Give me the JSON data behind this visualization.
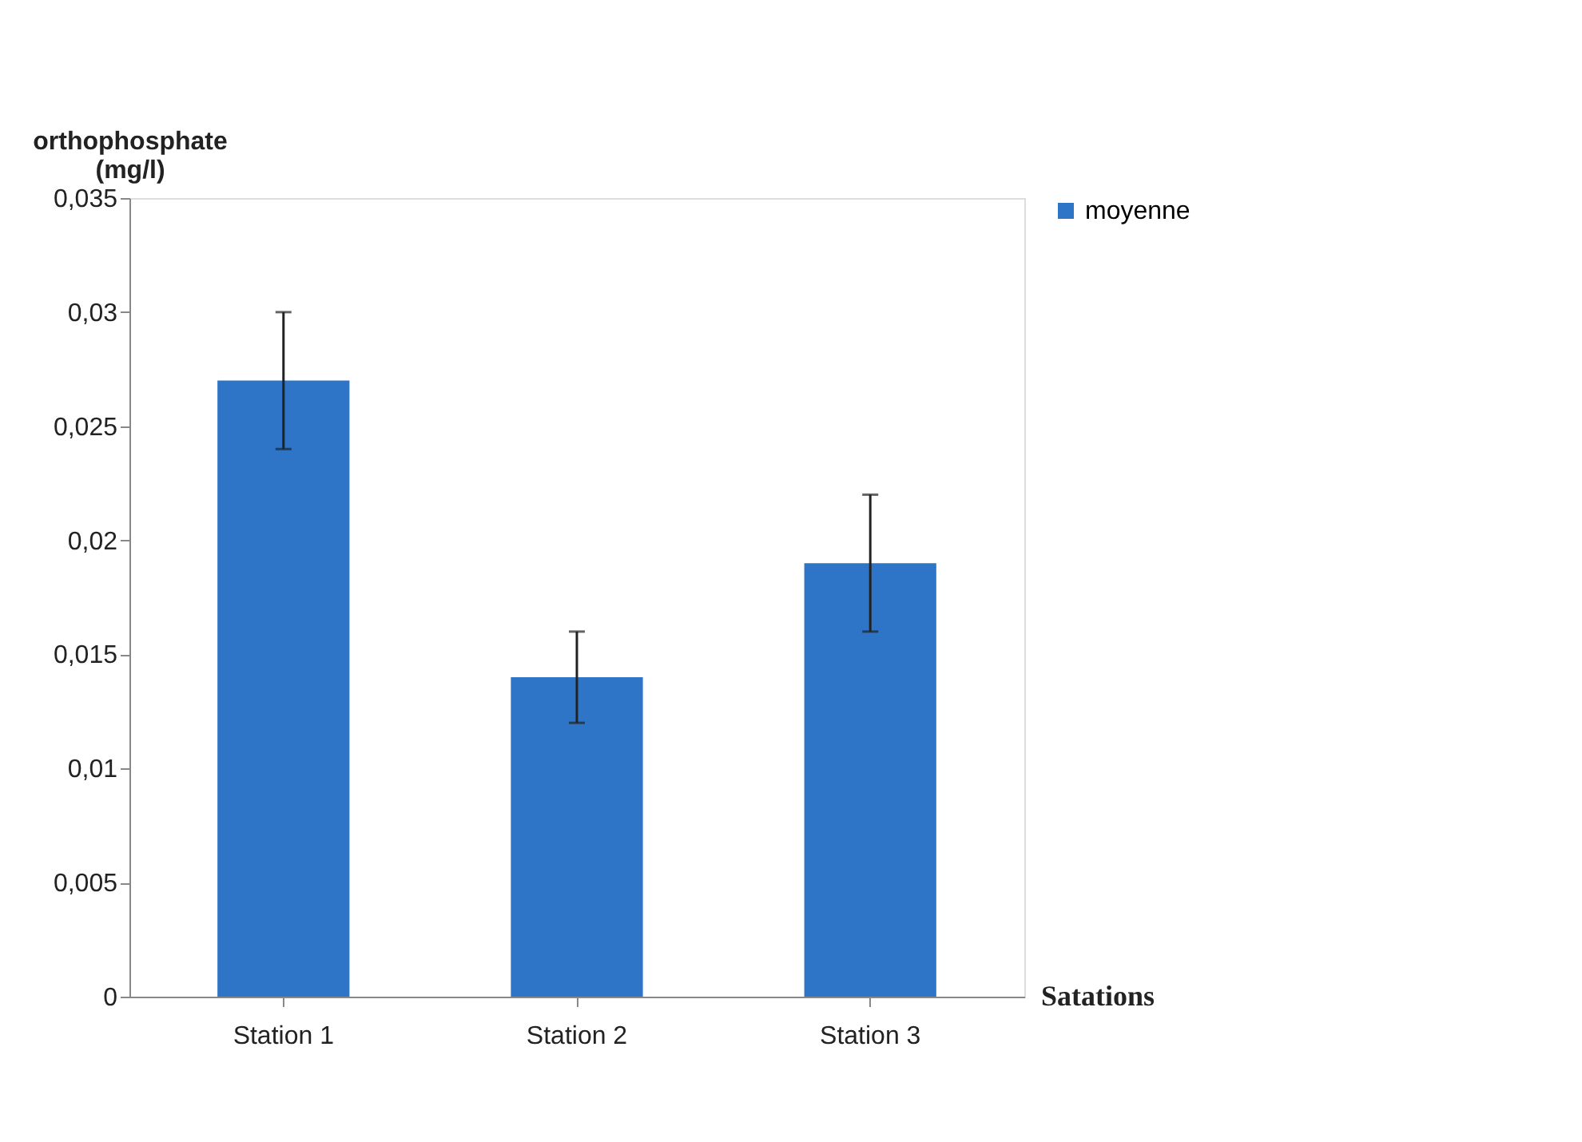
{
  "chart_data": {
    "type": "bar",
    "xlabel": "Satations",
    "ylabel": "orthophosphate (mg/l)",
    "categories": [
      "Station 1",
      "Station 2",
      "Station 3"
    ],
    "series": [
      {
        "name": "moyenne",
        "color": "#2e75c8",
        "values": [
          0.027,
          0.014,
          0.019
        ],
        "errors": [
          [
            0.024,
            0.03
          ],
          [
            0.012,
            0.016
          ],
          [
            0.016,
            0.022
          ]
        ]
      }
    ],
    "ylim": [
      0,
      0.035
    ],
    "yticks": [
      {
        "value": 0,
        "label": "0"
      },
      {
        "value": 0.005,
        "label": "0,005"
      },
      {
        "value": 0.01,
        "label": "0,01"
      },
      {
        "value": 0.015,
        "label": "0,015"
      },
      {
        "value": 0.02,
        "label": "0,02"
      },
      {
        "value": 0.025,
        "label": "0,025"
      },
      {
        "value": 0.03,
        "label": "0,03"
      },
      {
        "value": 0.035,
        "label": "0,035"
      }
    ],
    "grid": false,
    "legend": "right"
  }
}
